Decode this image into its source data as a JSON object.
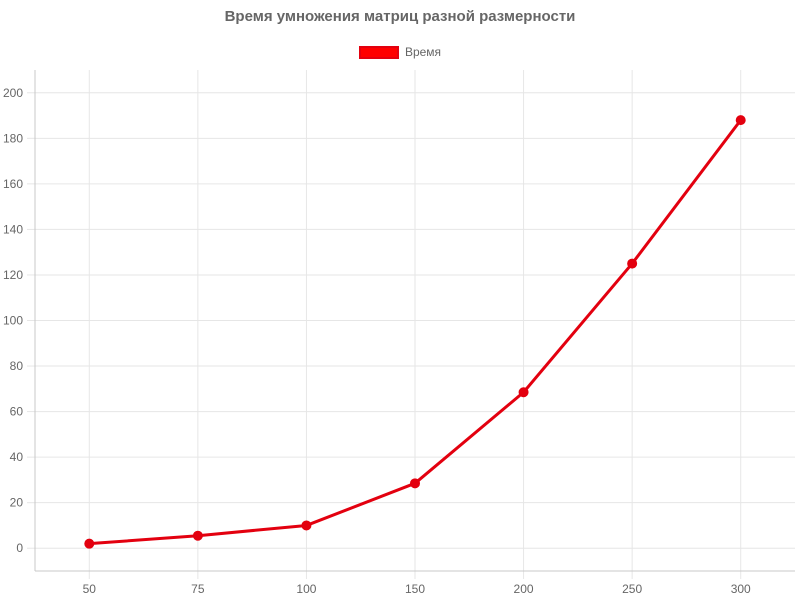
{
  "chart_data": {
    "type": "line",
    "title": "Время умножения матриц разной размерности",
    "xlabel": "",
    "ylabel": "",
    "categories": [
      "50",
      "75",
      "100",
      "150",
      "200",
      "250",
      "300"
    ],
    "series": [
      {
        "name": "Время",
        "values": [
          2,
          5.5,
          10,
          28.5,
          68.5,
          125,
          188
        ]
      }
    ],
    "yticks": [
      0,
      20,
      40,
      60,
      80,
      100,
      120,
      140,
      160,
      180,
      200
    ],
    "ylim": [
      -10,
      210
    ],
    "grid": true,
    "legend_position": "top",
    "colors": {
      "line": "#e3000f",
      "legend_fill": "#ff0000",
      "grid": "#e6e6e6",
      "axis": "#c8c8c8",
      "text": "#666666"
    }
  }
}
